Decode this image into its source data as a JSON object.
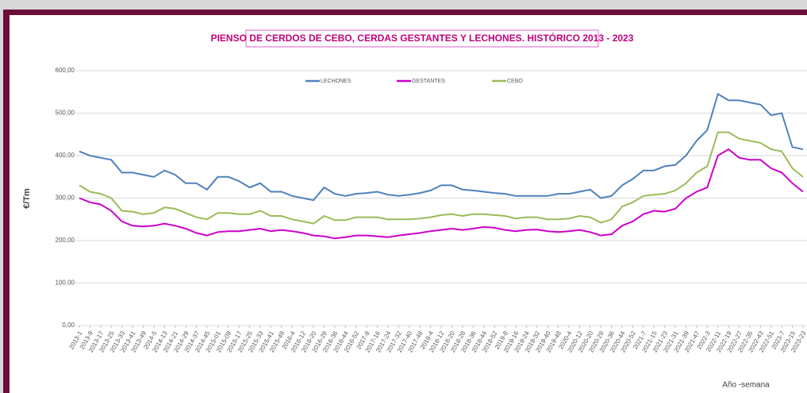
{
  "chart_data": {
    "type": "line",
    "title": "PIENSO DE CERDOS DE CEBO, CERDAS GESTANTES Y LECHONES. HISTÓRICO 2013 - 2023",
    "y_label": "€/Tm",
    "x_label": "Año -semana",
    "categories": [
      "2013-1",
      "2013-9",
      "2013-17",
      "2013-25",
      "2013-33",
      "2013-41",
      "2013-49",
      "2014-5",
      "2014-13",
      "2014-21",
      "2014-29",
      "2014-37",
      "2014-45",
      "2015-01",
      "2015-09",
      "2015-17",
      "2015-25",
      "2015-33",
      "2015-41",
      "2015-49",
      "2016-4",
      "2016-12",
      "2016-20",
      "2016-28",
      "2016-36",
      "2016-44",
      "2016-52",
      "2017-8",
      "2017-16",
      "2017-24",
      "2017-32",
      "2017-40",
      "2017-48",
      "2018-4",
      "2018-12",
      "2018-20",
      "2018-28",
      "2018-36",
      "2018-44",
      "2018-52",
      "2019-8",
      "2019-16",
      "2019-24",
      "2019-32",
      "2019-40",
      "2019-48",
      "2020-4",
      "2020-12",
      "2020-20",
      "2020-28",
      "2020-36",
      "2020-44",
      "2020-52",
      "2021-7",
      "2021-15",
      "2021-23",
      "2021-31",
      "2021-39",
      "2021-47",
      "2022-3",
      "2022-11",
      "2022-19",
      "2022-27",
      "2022-35",
      "2022-43",
      "2022-51",
      "2023-7",
      "2023-15",
      "2023-23"
    ],
    "series": [
      {
        "name": "LECHONES",
        "color": "#4f81bd",
        "values": [
          410,
          400,
          395,
          390,
          360,
          360,
          355,
          350,
          365,
          355,
          335,
          335,
          320,
          350,
          350,
          340,
          325,
          335,
          315,
          315,
          305,
          300,
          295,
          325,
          310,
          305,
          310,
          312,
          315,
          308,
          305,
          308,
          312,
          318,
          330,
          330,
          320,
          318,
          315,
          312,
          310,
          305,
          305,
          305,
          305,
          310,
          310,
          315,
          320,
          300,
          305,
          330,
          345,
          365,
          365,
          375,
          378,
          400,
          435,
          460,
          545,
          530,
          530,
          525,
          520,
          495,
          500,
          420,
          415
        ]
      },
      {
        "name": "GESTANTES",
        "color": "#cc00cc",
        "values": [
          300,
          290,
          285,
          270,
          245,
          235,
          233,
          235,
          240,
          235,
          228,
          218,
          212,
          220,
          222,
          222,
          225,
          228,
          222,
          225,
          222,
          218,
          212,
          210,
          205,
          208,
          212,
          212,
          210,
          208,
          212,
          215,
          218,
          222,
          225,
          228,
          225,
          228,
          232,
          230,
          225,
          222,
          225,
          226,
          222,
          220,
          222,
          225,
          220,
          212,
          215,
          235,
          245,
          262,
          270,
          268,
          275,
          300,
          315,
          325,
          400,
          415,
          395,
          390,
          390,
          370,
          360,
          335,
          315
        ]
      },
      {
        "name": "CEBO",
        "color": "#9bbb59",
        "values": [
          330,
          315,
          310,
          300,
          270,
          268,
          262,
          265,
          278,
          275,
          265,
          255,
          250,
          265,
          265,
          262,
          262,
          270,
          258,
          258,
          250,
          245,
          240,
          258,
          248,
          248,
          255,
          255,
          255,
          250,
          250,
          250,
          252,
          255,
          260,
          262,
          258,
          262,
          262,
          260,
          258,
          252,
          255,
          255,
          250,
          250,
          252,
          258,
          255,
          242,
          250,
          280,
          290,
          305,
          308,
          310,
          318,
          335,
          360,
          375,
          455,
          455,
          440,
          435,
          430,
          415,
          410,
          370,
          350
        ]
      }
    ],
    "ylim": [
      0,
      600
    ],
    "yticks": [
      {
        "value": 0,
        "label": "0,00"
      },
      {
        "value": 100,
        "label": "100,00"
      },
      {
        "value": 200,
        "label": "200,00"
      },
      {
        "value": 300,
        "label": "300,00"
      },
      {
        "value": 400,
        "label": "400,00"
      },
      {
        "value": 500,
        "label": "500,00"
      },
      {
        "value": 600,
        "label": "600,00"
      }
    ],
    "grid": true,
    "legend": "top"
  }
}
